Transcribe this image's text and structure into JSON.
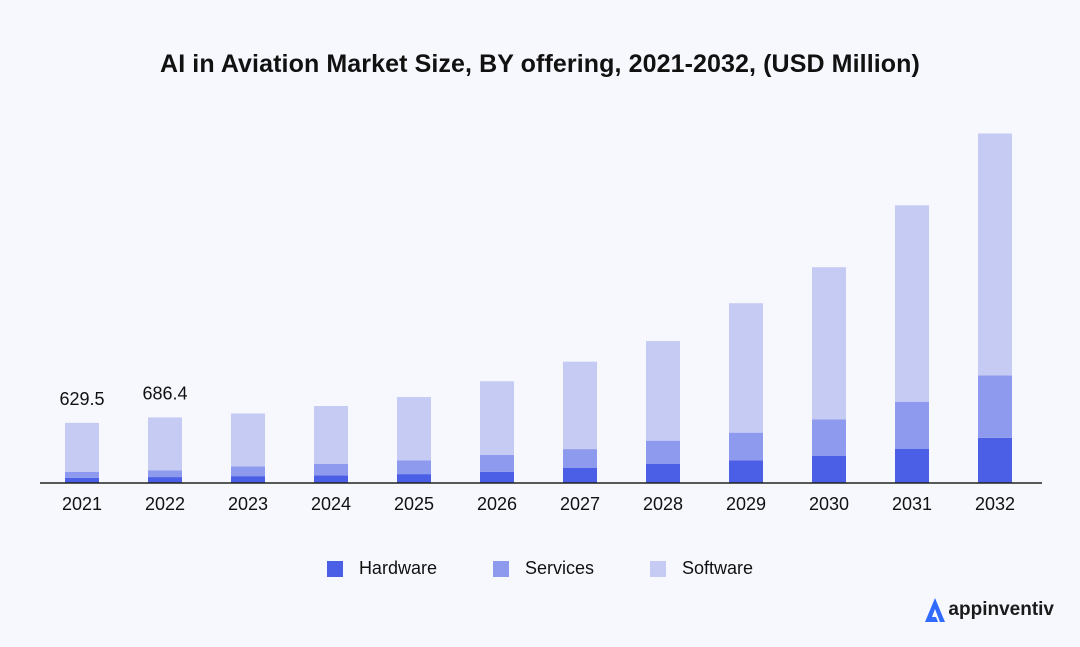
{
  "chart_data": {
    "type": "bar",
    "stacked": true,
    "title": "AI in Aviation Market Size, BY offering, 2021-2032, (USD Million)",
    "xlabel": "",
    "ylabel": "",
    "categories": [
      "2021",
      "2022",
      "2023",
      "2024",
      "2025",
      "2026",
      "2027",
      "2028",
      "2029",
      "2030",
      "2031",
      "2032"
    ],
    "series": [
      {
        "name": "Hardware",
        "color": "#4a5ee6",
        "values": [
          55,
          62,
          72,
          80,
          93,
          117,
          157,
          199,
          236,
          283,
          356,
          473
        ]
      },
      {
        "name": "Services",
        "color": "#8e9aed",
        "values": [
          62,
          69,
          101,
          119,
          145,
          178,
          198,
          244,
          291,
          384,
          495,
          654
        ]
      },
      {
        "name": "Software",
        "color": "#c5cbf3",
        "values": [
          512.5,
          555.4,
          555,
          607,
          662,
          770,
          915,
          1043,
          1355,
          1592,
          2056,
          2532
        ]
      }
    ],
    "data_labels": [
      {
        "category": "2021",
        "text": "629.5"
      },
      {
        "category": "2022",
        "text": "686.4"
      }
    ],
    "ylim": [
      0,
      3800
    ],
    "grid": false,
    "legend_position": "bottom-center"
  },
  "brand": {
    "name": "appinventiv",
    "icon": "appinventiv-logo-icon"
  }
}
